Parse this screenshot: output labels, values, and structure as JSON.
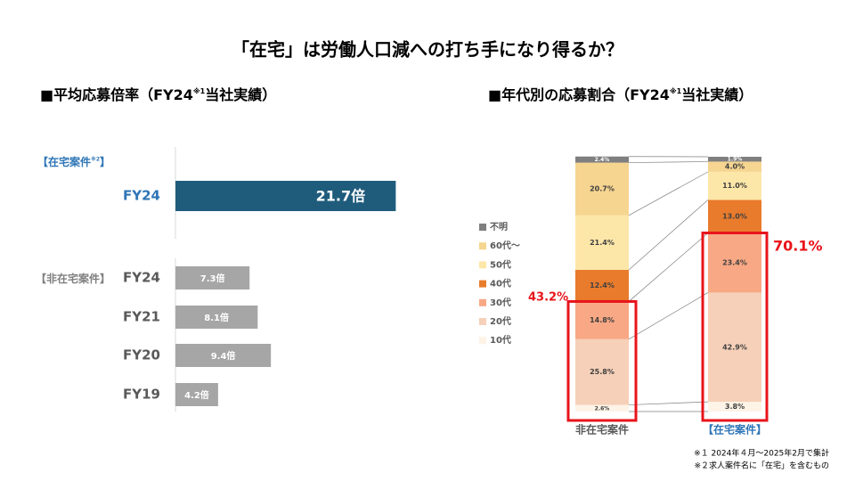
{
  "title": "「在宅」は労働人口減への打ち手になり得るか？",
  "footnotes": [
    "※１ 2024年４月～2025年2月で集計",
    "※２求人案件名に「在宅」を含むもの"
  ],
  "chart_data": [
    {
      "type": "bar",
      "orientation": "horizontal",
      "title": [
        "■平均応募倍率（FY24",
        "※1",
        "当社実績）"
      ],
      "groups": [
        [
          "【在宅案件",
          "※2",
          "】"
        ],
        [
          "【非在宅案件】"
        ]
      ],
      "categories": [
        "FY24",
        "FY24",
        "FY21",
        "FY20",
        "FY19"
      ],
      "values": [
        21.7,
        7.3,
        8.1,
        9.4,
        4.2
      ],
      "value_labels": [
        "21.7倍",
        "7.3倍",
        "8.1倍",
        "9.4倍",
        "4.2倍"
      ],
      "colors": [
        "#1f5c7c",
        "#a6a6a6",
        "#a6a6a6",
        "#a6a6a6",
        "#a6a6a6"
      ]
    },
    {
      "type": "stacked_bar",
      "title": [
        "■年代別の応募割合（FY24",
        "※1",
        "当社実績）"
      ],
      "categories": [
        "非在宅案件",
        "【在宅案件】"
      ],
      "series": [
        {
          "name": "10代",
          "color": "#fdf3e6",
          "values": [
            2.6,
            3.8
          ],
          "value_labels": [
            "2.6%",
            "3.8%"
          ]
        },
        {
          "name": "20代",
          "color": "#f6d0b8",
          "values": [
            25.8,
            42.9
          ],
          "value_labels": [
            "25.8%",
            "42.9%"
          ]
        },
        {
          "name": "30代",
          "color": "#f8a885",
          "values": [
            14.8,
            23.4
          ],
          "value_labels": [
            "14.8%",
            "23.4%"
          ]
        },
        {
          "name": "40代",
          "color": "#e97b2c",
          "values": [
            12.4,
            13.0
          ],
          "value_labels": [
            "12.4%",
            "13.0%"
          ]
        },
        {
          "name": "50代",
          "color": "#fde7a8",
          "values": [
            21.4,
            11.0
          ],
          "value_labels": [
            "21.4%",
            "11.0%"
          ]
        },
        {
          "name": "60代～",
          "color": "#f6d590",
          "values": [
            20.7,
            4.0
          ],
          "value_labels": [
            "20.7%",
            "4.0%"
          ]
        },
        {
          "name": "不明",
          "color": "#7f7f7f",
          "values": [
            2.4,
            1.9
          ],
          "value_labels": [
            "2.4%",
            "1.9%"
          ]
        }
      ],
      "annotations": [
        {
          "values": 43.2,
          "value_labels": "43.2%"
        },
        {
          "values": 70.1,
          "value_labels": "70.1%"
        }
      ]
    }
  ]
}
